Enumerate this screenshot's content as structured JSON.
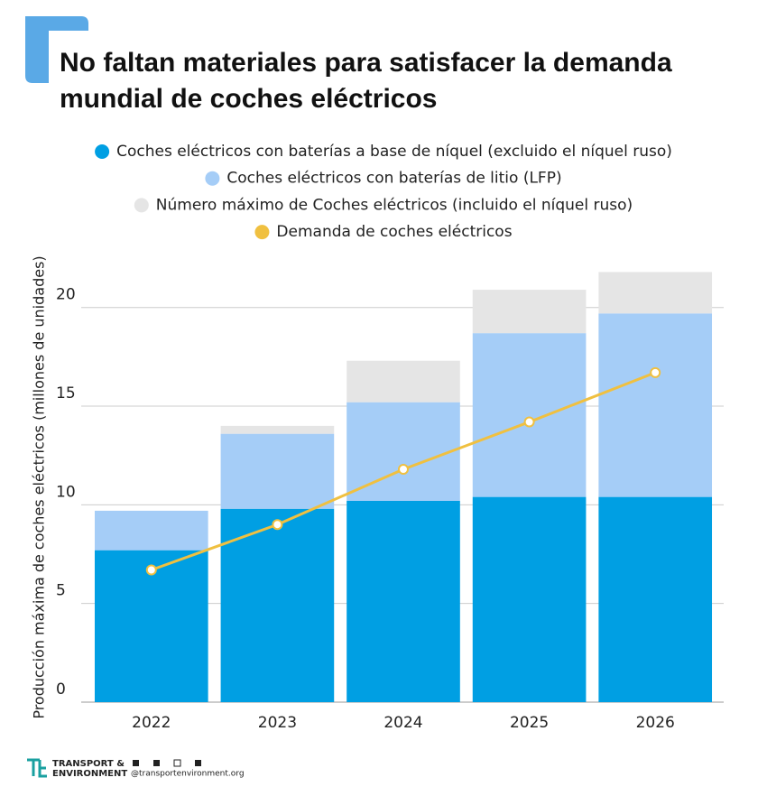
{
  "chart_data": {
    "type": "stacked-bar-line",
    "title": "No faltan materiales para satisfacer la demanda mundial de coches eléctricos",
    "y_label": "Producción máxima de coches eléctricos (millones de unidades)",
    "categories": [
      "2022",
      "2023",
      "2024",
      "2025",
      "2026"
    ],
    "series": [
      {
        "name": "Coches eléctricos con baterías a base de níquel (excluido el níquel ruso)",
        "color": "#009fe3",
        "values": [
          7.7,
          9.8,
          10.2,
          10.4,
          10.4
        ]
      },
      {
        "name": "Coches eléctricos con baterías de litio (LFP)",
        "color": "#a5cdf7",
        "values": [
          2.0,
          3.8,
          5.0,
          8.3,
          9.3
        ]
      },
      {
        "name": "Número máximo de Coches eléctricos (incluido el níquel ruso)",
        "color": "#e5e5e5",
        "values": [
          0,
          0.4,
          2.1,
          2.2,
          2.1
        ]
      },
      {
        "name": "Demanda de coches eléctricos",
        "color": "#f0c040",
        "type": "line",
        "values": [
          6.7,
          9.0,
          11.8,
          14.2,
          16.7
        ]
      }
    ],
    "ylim": [
      0,
      22
    ],
    "yticks": [
      0,
      5,
      10,
      15,
      20
    ],
    "grid": true
  },
  "footer": {
    "logo_line1": "TRANSPORT &",
    "logo_line2": "ENVIRONMENT",
    "website": "@transportenvironment.org"
  }
}
